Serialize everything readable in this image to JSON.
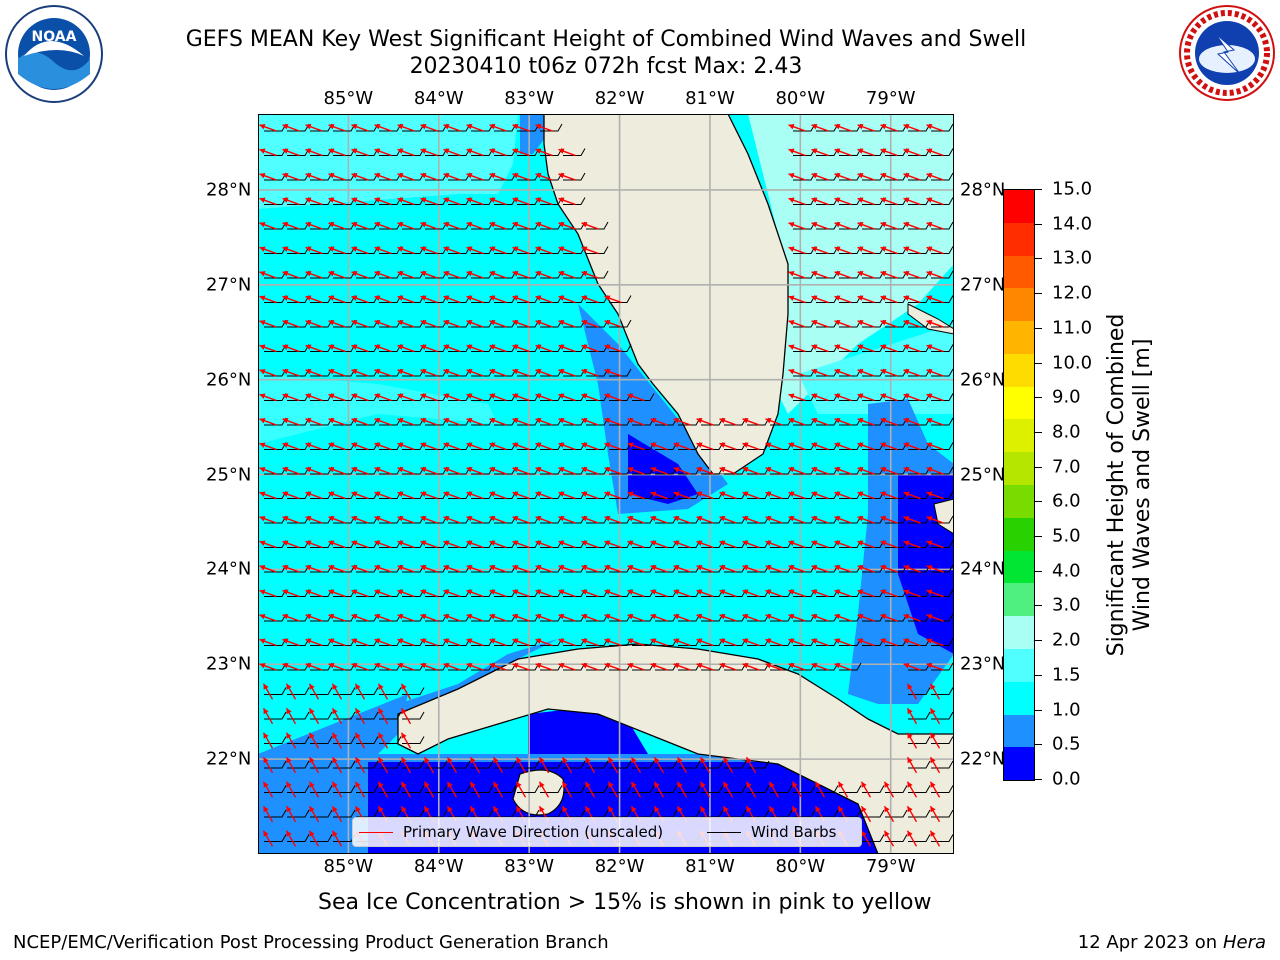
{
  "title": {
    "line1": "GEFS MEAN Key West Significant Height of Combined Wind Waves and Swell",
    "line2": "20230410 t06z 072h fcst   Max: 2.43"
  },
  "logos": {
    "left": {
      "icon": "noaa-logo",
      "text": "NOAA"
    },
    "right": {
      "icon": "national-weather-service-logo",
      "text": "NATIONAL WEATHER SERVICE"
    }
  },
  "map": {
    "lon_labels": [
      "85°W",
      "84°W",
      "83°W",
      "82°W",
      "81°W",
      "80°W",
      "79°W"
    ],
    "lat_labels": [
      "28°N",
      "27°N",
      "26°N",
      "25°N",
      "24°N",
      "23°N",
      "22°N"
    ],
    "lon_values": [
      -85,
      -84,
      -83,
      -82,
      -81,
      -80,
      -79
    ],
    "lat_values": [
      28,
      27,
      26,
      25,
      24,
      23,
      22
    ],
    "lon_range": [
      -86.0,
      -78.3
    ],
    "lat_range": [
      21.0,
      28.8
    ],
    "land_color": "#eeecdd",
    "grid_color": "#b0b0b0"
  },
  "legend": {
    "wave_label": "Primary Wave Direction (unscaled)",
    "wind_label": "Wind Barbs",
    "wave_color": "#ff0000",
    "wind_color": "#000000"
  },
  "colorbar": {
    "label_line1": "Significant Height of Combined",
    "label_line2": "Wind Waves and Swell [m]",
    "ticks": [
      "15.0",
      "14.0",
      "13.0",
      "12.0",
      "11.0",
      "10.0",
      "9.0",
      "8.0",
      "7.0",
      "6.0",
      "5.0",
      "4.0",
      "3.0",
      "2.0",
      "1.5",
      "1.0",
      "0.5",
      "0.0"
    ],
    "colors": [
      "#ff0000",
      "#ff2d00",
      "#ff5a00",
      "#ff8700",
      "#ffb400",
      "#ffdc00",
      "#ffff00",
      "#dcf000",
      "#b4e600",
      "#78dc00",
      "#28d200",
      "#00e632",
      "#50f080",
      "#aafff5",
      "#50ffff",
      "#00ffff",
      "#1e90ff",
      "#0000ff"
    ]
  },
  "sea_ice_note": "Sea Ice Concentration > 15% is shown in pink to yellow",
  "footer": {
    "left": "NCEP/EMC/Verification Post Processing Product Generation Branch",
    "right_prefix": "12 Apr 2023 on ",
    "right_host": "Hera"
  }
}
